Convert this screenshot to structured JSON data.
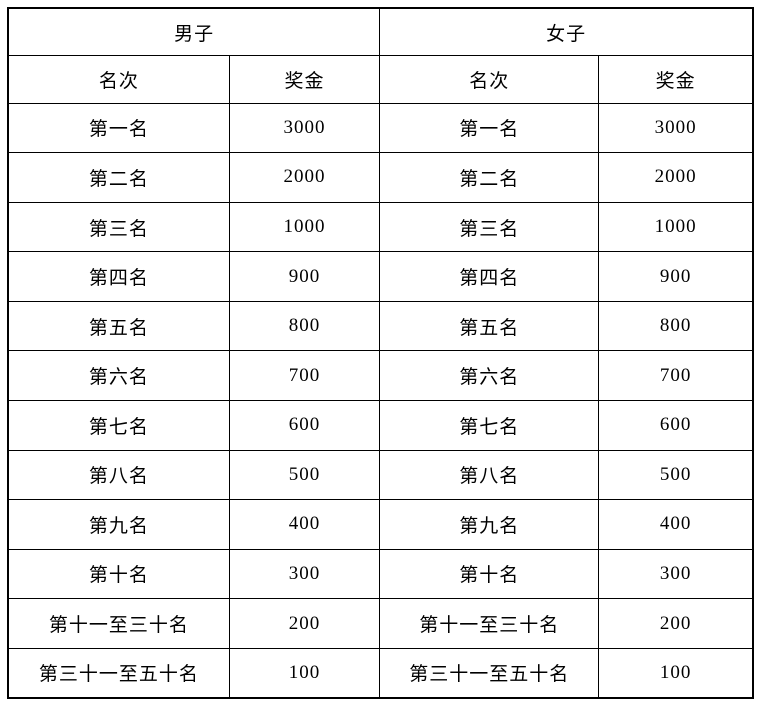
{
  "header": {
    "men_label": "男子",
    "women_label": "女子",
    "rank_label": "名次",
    "prize_label": "奖金"
  },
  "men_rows": [
    {
      "rank": "第一名",
      "prize": "3000"
    },
    {
      "rank": "第二名",
      "prize": "2000"
    },
    {
      "rank": "第三名",
      "prize": "1000"
    },
    {
      "rank": "第四名",
      "prize": "900"
    },
    {
      "rank": "第五名",
      "prize": "800"
    },
    {
      "rank": "第六名",
      "prize": "700"
    },
    {
      "rank": "第七名",
      "prize": "600"
    },
    {
      "rank": "第八名",
      "prize": "500"
    },
    {
      "rank": "第九名",
      "prize": "400"
    },
    {
      "rank": "第十名",
      "prize": "300"
    },
    {
      "rank": "第十一至三十名",
      "prize": "200"
    },
    {
      "rank": "第三十一至五十名",
      "prize": "100"
    }
  ],
  "women_rows": [
    {
      "rank": "第一名",
      "prize": "3000"
    },
    {
      "rank": "第二名",
      "prize": "2000"
    },
    {
      "rank": "第三名",
      "prize": "1000"
    },
    {
      "rank": "第四名",
      "prize": "900"
    },
    {
      "rank": "第五名",
      "prize": "800"
    },
    {
      "rank": "第六名",
      "prize": "700"
    },
    {
      "rank": "第七名",
      "prize": "600"
    },
    {
      "rank": "第八名",
      "prize": "500"
    },
    {
      "rank": "第九名",
      "prize": "400"
    },
    {
      "rank": "第十名",
      "prize": "300"
    },
    {
      "rank": "第十一至三十名",
      "prize": "200"
    },
    {
      "rank": "第三十一至五十名",
      "prize": "100"
    }
  ]
}
